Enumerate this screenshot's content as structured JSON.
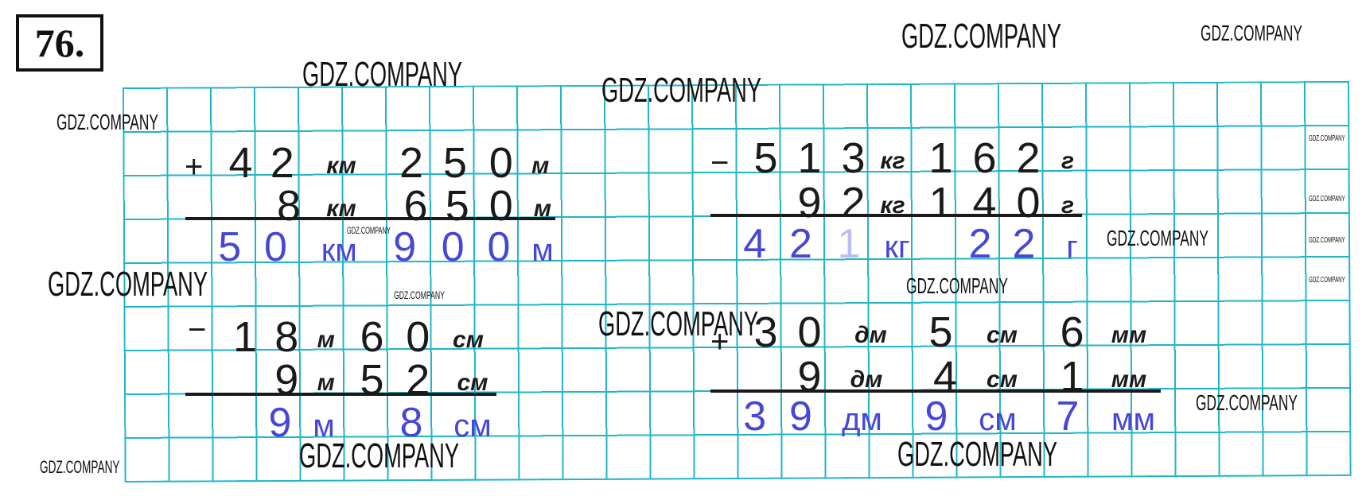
{
  "exercise_number": "76.",
  "problems": [
    {
      "operator": "+",
      "rows": [
        [
          "4",
          "2",
          "км",
          "2",
          "5",
          "0",
          "м"
        ],
        [
          "8",
          "км",
          "6",
          "5",
          "0",
          "м"
        ]
      ],
      "result": [
        "5",
        "0",
        "км",
        "9",
        "0",
        "0",
        "м"
      ]
    },
    {
      "operator": "−",
      "rows": [
        [
          "1",
          "8",
          "м",
          "6",
          "0",
          "см"
        ],
        [
          "9",
          "м",
          "5",
          "2",
          "см"
        ]
      ],
      "result": [
        "9",
        "м",
        "8",
        "см"
      ]
    },
    {
      "operator": "−",
      "rows": [
        [
          "5",
          "1",
          "3",
          "кг",
          "1",
          "6",
          "2",
          "г"
        ],
        [
          "9",
          "2",
          "кг",
          "1",
          "4",
          "0",
          "г"
        ]
      ],
      "result": [
        "4",
        "2",
        "1",
        "кг",
        "2",
        "2",
        "г"
      ]
    },
    {
      "operator": "+",
      "rows": [
        [
          "3",
          "0",
          "дм",
          "5",
          "см",
          "6",
          "мм"
        ],
        [
          "9",
          "дм",
          "4",
          "см",
          "1",
          "мм"
        ]
      ],
      "result": [
        "3",
        "9",
        "дм",
        "9",
        "см",
        "7",
        "мм"
      ]
    }
  ],
  "watermarks": [
    "GDZ.COMPANY",
    "GDZ.COMPANY",
    "GDZ.COMPANY",
    "GDZ.COMPANY",
    "GDZ.COMPANY",
    "GDZ.COMPANY",
    "GDZ.COMPANY",
    "GDZ.COMPANY",
    "GDZ.COMPANY",
    "GDZ.COMPANY",
    "GDZ.COMPANY",
    "GDZ.COMPANY",
    "GDZ.COMPANY",
    "GDZ.COMPANY",
    "GDZ.COMPANY",
    "GDZ.COMPANY",
    "GDZ.COMPANY",
    "GDZ.COMPANY",
    "GDZ.COMPANY"
  ],
  "colors": {
    "grid": "#1fb6c9",
    "answer": "#4646d8",
    "ink": "#1a1a1a"
  }
}
